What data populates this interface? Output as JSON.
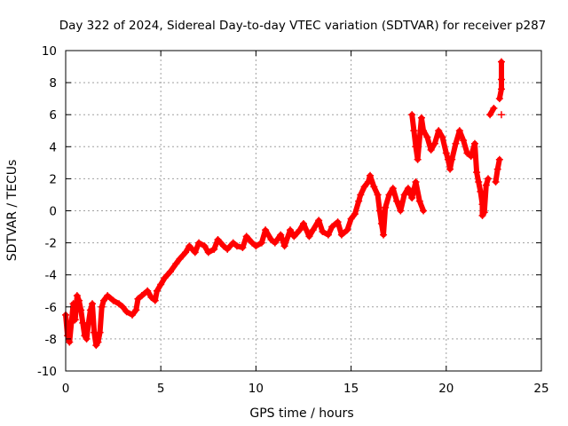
{
  "chart_data": {
    "type": "scatter",
    "title": "Day 322 of 2024, Sidereal Day-to-day VTEC variation (SDTVAR) for receiver p287",
    "xlabel": "GPS time / hours",
    "ylabel": "SDTVAR / TECUs",
    "xlim": [
      0,
      25
    ],
    "ylim": [
      -10,
      10
    ],
    "x_ticks": [
      0,
      5,
      10,
      15,
      20,
      25
    ],
    "x_tick_labels": [
      "0",
      "5",
      "10",
      "15",
      "20",
      "25"
    ],
    "y_ticks": [
      -10,
      -8,
      -6,
      -4,
      -2,
      0,
      2,
      4,
      6,
      8,
      10
    ],
    "y_tick_labels": [
      "-10",
      "-8",
      "-6",
      "-4",
      "-2",
      "0",
      "2",
      "4",
      "6",
      "8",
      "10"
    ],
    "grid": true,
    "marker": "plus",
    "series": [
      {
        "name": "SDTVAR",
        "color": "#ff0000",
        "points": [
          [
            0.0,
            -6.5
          ],
          [
            0.1,
            -7.8
          ],
          [
            0.2,
            -8.2
          ],
          [
            0.3,
            -7.0
          ],
          [
            0.4,
            -5.8
          ],
          [
            0.5,
            -6.8
          ],
          [
            0.6,
            -5.3
          ],
          [
            0.7,
            -5.6
          ],
          [
            0.8,
            -6.2
          ],
          [
            0.9,
            -7.0
          ],
          [
            1.0,
            -7.8
          ],
          [
            1.1,
            -8.0
          ],
          [
            1.2,
            -7.0
          ],
          [
            1.3,
            -6.2
          ],
          [
            1.4,
            -5.8
          ],
          [
            1.5,
            -7.6
          ],
          [
            1.6,
            -8.4
          ],
          [
            1.7,
            -8.2
          ],
          [
            1.8,
            -7.6
          ],
          [
            1.9,
            -6.0
          ],
          [
            2.0,
            -5.6
          ],
          [
            2.2,
            -5.3
          ],
          [
            2.5,
            -5.6
          ],
          [
            2.8,
            -5.8
          ],
          [
            3.0,
            -6.0
          ],
          [
            3.2,
            -6.3
          ],
          [
            3.5,
            -6.5
          ],
          [
            3.7,
            -6.2
          ],
          [
            3.8,
            -5.5
          ],
          [
            4.0,
            -5.3
          ],
          [
            4.3,
            -5.0
          ],
          [
            4.5,
            -5.4
          ],
          [
            4.7,
            -5.6
          ],
          [
            4.8,
            -5.0
          ],
          [
            5.0,
            -4.6
          ],
          [
            5.2,
            -4.2
          ],
          [
            5.5,
            -3.8
          ],
          [
            5.8,
            -3.3
          ],
          [
            6.0,
            -3.0
          ],
          [
            6.3,
            -2.6
          ],
          [
            6.5,
            -2.2
          ],
          [
            6.8,
            -2.6
          ],
          [
            7.0,
            -2.0
          ],
          [
            7.3,
            -2.2
          ],
          [
            7.5,
            -2.6
          ],
          [
            7.8,
            -2.4
          ],
          [
            8.0,
            -1.8
          ],
          [
            8.3,
            -2.2
          ],
          [
            8.5,
            -2.4
          ],
          [
            8.8,
            -2.0
          ],
          [
            9.0,
            -2.2
          ],
          [
            9.3,
            -2.3
          ],
          [
            9.5,
            -1.6
          ],
          [
            9.8,
            -2.0
          ],
          [
            10.0,
            -2.2
          ],
          [
            10.3,
            -2.0
          ],
          [
            10.5,
            -1.2
          ],
          [
            10.8,
            -1.8
          ],
          [
            11.0,
            -2.0
          ],
          [
            11.3,
            -1.5
          ],
          [
            11.5,
            -2.2
          ],
          [
            11.8,
            -1.2
          ],
          [
            12.0,
            -1.6
          ],
          [
            12.3,
            -1.2
          ],
          [
            12.5,
            -0.8
          ],
          [
            12.8,
            -1.6
          ],
          [
            13.0,
            -1.2
          ],
          [
            13.3,
            -0.6
          ],
          [
            13.5,
            -1.3
          ],
          [
            13.8,
            -1.5
          ],
          [
            14.0,
            -1.0
          ],
          [
            14.3,
            -0.7
          ],
          [
            14.5,
            -1.5
          ],
          [
            14.8,
            -1.2
          ],
          [
            15.0,
            -0.5
          ],
          [
            15.2,
            -0.2
          ],
          [
            15.4,
            0.6
          ],
          [
            15.5,
            1.0
          ],
          [
            15.7,
            1.5
          ],
          [
            15.9,
            1.8
          ],
          [
            16.0,
            2.2
          ],
          [
            16.2,
            1.5
          ],
          [
            16.4,
            1.0
          ],
          [
            16.5,
            0.0
          ],
          [
            16.6,
            -0.8
          ],
          [
            16.7,
            -1.5
          ],
          [
            16.8,
            0.2
          ],
          [
            17.0,
            1.0
          ],
          [
            17.2,
            1.4
          ],
          [
            17.4,
            0.6
          ],
          [
            17.6,
            0.0
          ],
          [
            17.8,
            1.0
          ],
          [
            18.0,
            1.4
          ],
          [
            18.2,
            0.8
          ],
          [
            18.4,
            1.8
          ],
          [
            18.6,
            0.6
          ],
          [
            18.8,
            0.0
          ],
          [
            18.2,
            6.0
          ],
          [
            18.3,
            5.0
          ],
          [
            18.4,
            4.0
          ],
          [
            18.5,
            3.2
          ],
          [
            18.7,
            5.8
          ],
          [
            18.8,
            5.0
          ],
          [
            19.0,
            4.6
          ],
          [
            19.2,
            3.8
          ],
          [
            19.4,
            4.2
          ],
          [
            19.6,
            5.0
          ],
          [
            19.8,
            4.6
          ],
          [
            20.0,
            3.6
          ],
          [
            20.1,
            3.2
          ],
          [
            20.2,
            2.6
          ],
          [
            20.3,
            3.2
          ],
          [
            20.5,
            4.2
          ],
          [
            20.7,
            5.0
          ],
          [
            20.9,
            4.4
          ],
          [
            21.1,
            3.6
          ],
          [
            21.3,
            3.4
          ],
          [
            21.5,
            4.2
          ],
          [
            21.6,
            2.4
          ],
          [
            21.7,
            1.8
          ],
          [
            21.8,
            1.2
          ],
          [
            21.9,
            0.4
          ],
          [
            21.9,
            -0.3
          ],
          [
            22.0,
            -0.1
          ],
          [
            22.1,
            1.6
          ],
          [
            22.2,
            2.0
          ],
          [
            22.3,
            6.0
          ],
          [
            22.5,
            6.4
          ],
          [
            22.6,
            1.8
          ],
          [
            22.7,
            2.6
          ],
          [
            22.8,
            3.2
          ],
          [
            22.8,
            7.0
          ],
          [
            22.9,
            7.6
          ],
          [
            22.9,
            8.2
          ],
          [
            22.9,
            9.3
          ],
          [
            22.9,
            6.0
          ]
        ]
      }
    ]
  }
}
